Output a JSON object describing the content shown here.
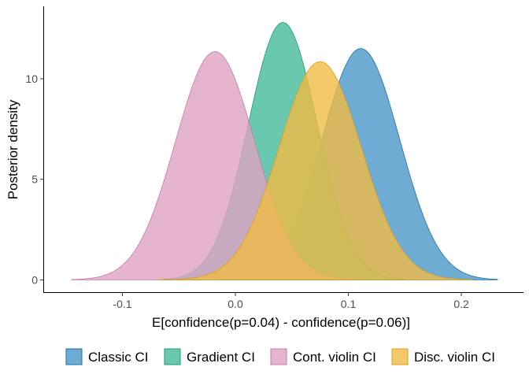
{
  "chart_data": {
    "type": "area",
    "title": "",
    "xlabel": "E[confidence(p=0.04) - confidence(p=0.06)]",
    "ylabel": "Posterior density",
    "xlim": [
      -0.17,
      0.255
    ],
    "ylim": [
      -0.65,
      13.6
    ],
    "x_ticks": [
      -0.1,
      0.0,
      0.1,
      0.2
    ],
    "x_tick_labels": [
      "-0.1",
      "0.0",
      "0.1",
      "0.2"
    ],
    "y_ticks": [
      0,
      5,
      10
    ],
    "y_tick_labels": [
      "0",
      "5",
      "10"
    ],
    "grid": false,
    "legend_position": "bottom",
    "series": [
      {
        "name": "Classic CI",
        "color": "#4a97c9",
        "stroke": "#1f6fa8",
        "mean": 0.111,
        "sd": 0.0345,
        "peak": 11.5,
        "range": [
          -0.015,
          0.232
        ]
      },
      {
        "name": "Gradient CI",
        "color": "#43ba98",
        "stroke": "#1a9a72",
        "mean": 0.042,
        "sd": 0.0305,
        "peak": 12.8,
        "range": [
          -0.064,
          0.15
        ]
      },
      {
        "name": "Cont. violin CI",
        "color": "#dea3c4",
        "stroke": "#c27aa6",
        "mean": -0.018,
        "sd": 0.035,
        "peak": 11.35,
        "range": [
          -0.145,
          0.12
        ]
      },
      {
        "name": "Disc. violin CI",
        "color": "#f0bc45",
        "stroke": "#d99e1c",
        "mean": 0.075,
        "sd": 0.0365,
        "peak": 10.85,
        "range": [
          -0.07,
          0.21
        ]
      }
    ]
  }
}
